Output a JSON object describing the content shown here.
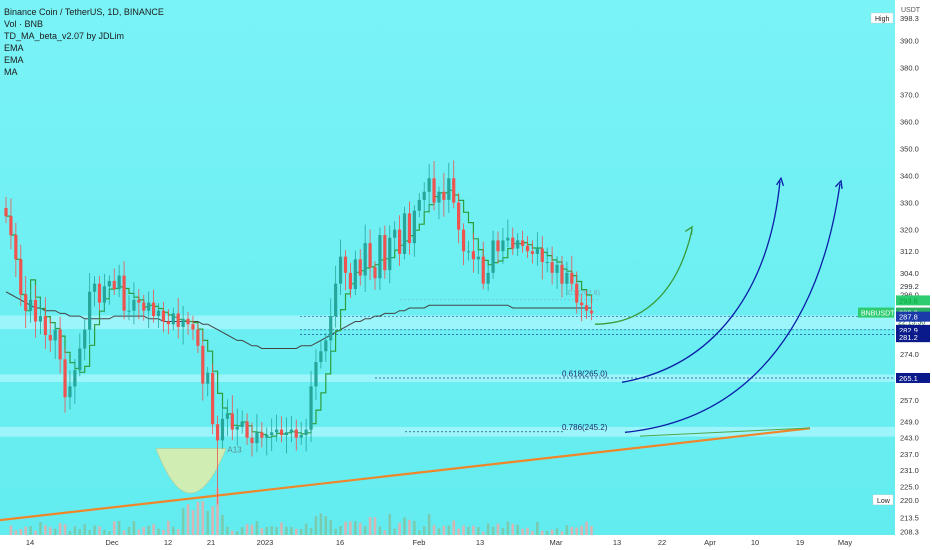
{
  "header": {
    "symbol_line": "Binance Coin / TetherUS, 1D, BINANCE",
    "indicators": [
      "Vol · BNB",
      "TD_MA_beta_v2.07 by JDLim",
      "EMA",
      "EMA",
      "MA"
    ]
  },
  "axis": {
    "currency": "USDT",
    "high_label": "High",
    "low_label": "Low",
    "x_ticks": [
      "14",
      "Dec",
      "12",
      "21",
      "2023",
      "16",
      "Feb",
      "13",
      "Mar",
      "13",
      "22",
      "Apr",
      "10",
      "19",
      "May"
    ],
    "price_ticks": [
      "398.3",
      "390.0",
      "380.0",
      "370.0",
      "360.0",
      "350.0",
      "340.0",
      "330.0",
      "320.0",
      "312.0",
      "304.0",
      "299.2",
      "296.0",
      "293.8",
      "289.3",
      "287.8",
      "282.9",
      "281.2",
      "274.0",
      "265.1",
      "257.0",
      "249.0",
      "243.0",
      "237.0",
      "231.0",
      "225.0",
      "220.0",
      "213.5",
      "208.3"
    ]
  },
  "badges": {
    "symbol": "BNBUSDT",
    "last_price": "289.3",
    "countdown": "22:15:50",
    "upper_price": "293.8",
    "levels": [
      "287.8",
      "282.9",
      "281.2",
      "265.1"
    ]
  },
  "fib": {
    "f618": "0.618(265.0)",
    "f786": "0.786(245.2)",
    "f_top": "0.5(282.8)"
  },
  "td_labels": [
    "A13"
  ],
  "colors": {
    "background": "#6ff0f4",
    "up": "#26a69a",
    "down": "#ef5350",
    "td_line": "#2e9e3c",
    "ma": "#444444",
    "trendline": "#f0862a",
    "zone": "#a4f6fb",
    "arrow_green": "#3a9a3a",
    "arrow_blue": "#0a1ea8"
  },
  "chart_data": {
    "type": "candlestick",
    "x_start": "2022-11-07",
    "values": [
      325,
      318,
      309,
      296,
      290,
      294,
      286,
      288,
      281,
      279,
      283,
      272,
      258,
      262,
      268,
      276,
      283,
      297,
      300,
      293,
      299,
      301,
      298,
      303,
      290,
      290,
      294,
      293,
      290,
      293,
      288,
      290,
      286,
      285,
      289,
      284,
      287,
      285,
      283,
      277,
      263,
      267,
      248,
      242,
      250,
      252,
      246,
      247,
      249,
      243,
      241,
      245,
      243,
      244,
      245,
      246,
      244,
      245,
      246,
      243,
      244,
      246,
      262,
      271,
      275,
      279,
      288,
      300,
      310,
      304,
      298,
      309,
      303,
      315,
      306,
      302,
      318,
      305,
      317,
      320,
      311,
      326,
      315,
      327,
      331,
      334,
      339,
      330,
      334,
      331,
      339,
      330,
      320,
      312,
      312,
      309,
      310,
      300,
      304,
      316,
      312,
      316,
      317,
      313,
      316,
      314,
      312,
      311,
      313,
      308,
      308,
      304,
      307,
      300,
      304,
      300,
      293,
      292,
      290,
      289
    ],
    "ma": [
      297,
      296,
      295,
      294,
      293,
      292,
      291,
      291,
      290,
      290,
      290,
      289,
      289,
      288,
      288,
      288,
      287,
      287,
      287,
      287,
      287,
      287,
      288,
      288,
      288,
      288,
      288,
      288,
      288,
      287,
      287,
      287,
      286,
      286,
      286,
      286,
      286,
      286,
      286,
      286,
      285,
      285,
      284,
      283,
      282,
      281,
      280,
      279,
      279,
      278,
      277,
      277,
      276,
      276,
      276,
      276,
      276,
      276,
      276,
      276,
      277,
      277,
      277,
      278,
      279,
      280,
      281,
      282,
      283,
      284,
      285,
      286,
      286,
      287,
      287,
      288,
      288,
      289,
      289,
      289,
      290,
      290,
      291,
      291,
      291,
      291,
      292,
      292,
      292,
      292,
      292,
      292,
      292,
      292,
      292,
      292,
      292,
      292,
      292,
      292,
      292,
      292,
      292,
      291,
      291,
      291,
      291,
      291,
      291,
      291,
      291,
      291,
      291,
      291,
      291,
      291,
      291,
      291,
      291,
      291
    ],
    "fib_levels": [
      {
        "label": "0.618(265.0)",
        "price": 265.0
      },
      {
        "label": "0.786(245.2)",
        "price": 245.2
      }
    ],
    "ylim": [
      207,
      402
    ]
  }
}
